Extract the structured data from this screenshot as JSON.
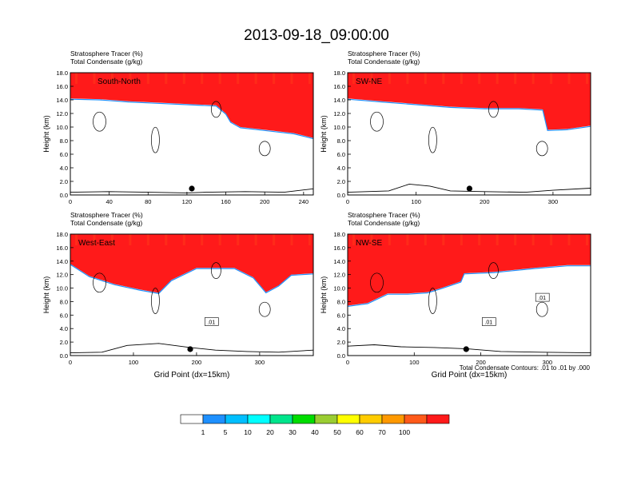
{
  "title": "2013-09-18_09:00:00",
  "footnote": "Total Condensate Contours: .01 to .01 by .000",
  "colorbar": {
    "levels": [
      "1",
      "5",
      "10",
      "20",
      "30",
      "40",
      "50",
      "60",
      "70",
      "100"
    ],
    "colors": [
      "#ffffff",
      "#1e90ff",
      "#00bfff",
      "#00ffff",
      "#00e58c",
      "#00dd00",
      "#9acd32",
      "#ffff00",
      "#ffcc00",
      "#ff9900",
      "#ff5a1a",
      "#ff1a1a"
    ]
  },
  "chart_data": [
    {
      "type": "cross-section",
      "label": "South-North",
      "heading1": "Stratosphere Tracer   (%)",
      "heading2": "Total Condensate   (g/kg)",
      "ylabel": "Height (km)",
      "xlabel": "",
      "xlim": [
        0,
        250
      ],
      "ylim": [
        0,
        18
      ],
      "xticks": [
        "0",
        "40",
        "80",
        "120",
        "160",
        "200",
        "240"
      ],
      "yticks": [
        "0.0",
        "2.0",
        "4.0",
        "6.0",
        "8.0",
        "10.0",
        "12.0",
        "14.0",
        "16.0",
        "18.0"
      ],
      "tropopause_km": [
        [
          0,
          15.4
        ],
        [
          30,
          15.3
        ],
        [
          60,
          15.0
        ],
        [
          90,
          14.8
        ],
        [
          120,
          14.6
        ],
        [
          150,
          14.4
        ],
        [
          160,
          13.2
        ],
        [
          165,
          12.0
        ],
        [
          175,
          11.2
        ],
        [
          200,
          10.8
        ],
        [
          230,
          10.3
        ],
        [
          250,
          9.6
        ]
      ],
      "marker_x": 125,
      "terrain_km": [
        [
          0,
          0.4
        ],
        [
          40,
          0.5
        ],
        [
          80,
          0.4
        ],
        [
          120,
          0.3
        ],
        [
          140,
          0.4
        ],
        [
          180,
          0.5
        ],
        [
          220,
          0.4
        ],
        [
          250,
          0.9
        ]
      ],
      "contour_labels": []
    },
    {
      "type": "cross-section",
      "label": "SW-NE",
      "heading1": "Stratosphere Tracer   (%)",
      "heading2": "Total Condensate   (g/kg)",
      "ylabel": "Height (km)",
      "xlabel": "",
      "xlim": [
        0,
        355
      ],
      "ylim": [
        0,
        18
      ],
      "xticks": [
        "0",
        "100",
        "200",
        "300"
      ],
      "yticks": [
        "0.0",
        "2.0",
        "4.0",
        "6.0",
        "8.0",
        "10.0",
        "12.0",
        "14.0",
        "16.0",
        "18.0"
      ],
      "tropopause_km": [
        [
          0,
          15.4
        ],
        [
          50,
          15.0
        ],
        [
          100,
          14.6
        ],
        [
          150,
          14.2
        ],
        [
          200,
          14.0
        ],
        [
          250,
          14.0
        ],
        [
          285,
          13.8
        ],
        [
          292,
          10.8
        ],
        [
          320,
          10.9
        ],
        [
          355,
          11.4
        ]
      ],
      "marker_x": 178,
      "terrain_km": [
        [
          0,
          0.4
        ],
        [
          60,
          0.6
        ],
        [
          90,
          1.6
        ],
        [
          120,
          1.3
        ],
        [
          150,
          0.6
        ],
        [
          200,
          0.5
        ],
        [
          260,
          0.4
        ],
        [
          300,
          0.7
        ],
        [
          355,
          1.0
        ]
      ],
      "contour_labels": []
    },
    {
      "type": "cross-section",
      "label": "West-East",
      "heading1": "Stratosphere Tracer   (%)",
      "heading2": "Total Condensate   (g/kg)",
      "ylabel": "Height (km)",
      "xlabel": "Grid Point (dx=15km)",
      "xlim": [
        0,
        385
      ],
      "ylim": [
        0,
        18
      ],
      "xticks": [
        "0",
        "100",
        "200",
        "300"
      ],
      "yticks": [
        "0.0",
        "2.0",
        "4.0",
        "6.0",
        "8.0",
        "10.0",
        "12.0",
        "14.0",
        "16.0",
        "18.0"
      ],
      "tropopause_km": [
        [
          0,
          14.8
        ],
        [
          30,
          13.0
        ],
        [
          70,
          11.8
        ],
        [
          110,
          11.0
        ],
        [
          140,
          10.5
        ],
        [
          160,
          12.4
        ],
        [
          200,
          14.2
        ],
        [
          260,
          14.2
        ],
        [
          290,
          12.8
        ],
        [
          310,
          10.6
        ],
        [
          330,
          11.6
        ],
        [
          350,
          13.2
        ],
        [
          385,
          13.4
        ]
      ],
      "marker_x": 190,
      "terrain_km": [
        [
          0,
          0.4
        ],
        [
          50,
          0.5
        ],
        [
          90,
          1.5
        ],
        [
          140,
          1.8
        ],
        [
          190,
          1.2
        ],
        [
          230,
          0.8
        ],
        [
          280,
          0.6
        ],
        [
          330,
          0.5
        ],
        [
          385,
          0.8
        ]
      ],
      "contour_labels": [
        ".01"
      ]
    },
    {
      "type": "cross-section",
      "label": "NW-SE",
      "heading1": "Stratosphere Tracer   (%)",
      "heading2": "Total Condensate   (g/kg)",
      "ylabel": "Height (km)",
      "xlabel": "Grid Point (dx=15km)",
      "xlim": [
        0,
        365
      ],
      "ylim": [
        0,
        18
      ],
      "xticks": [
        "0",
        "100",
        "200",
        "300"
      ],
      "yticks": [
        "0.0",
        "2.0",
        "4.0",
        "6.0",
        "8.0",
        "10.0",
        "12.0",
        "14.0",
        "16.0",
        "18.0"
      ],
      "tropopause_km": [
        [
          0,
          8.6
        ],
        [
          30,
          9.0
        ],
        [
          60,
          10.4
        ],
        [
          90,
          10.4
        ],
        [
          120,
          10.6
        ],
        [
          140,
          11.2
        ],
        [
          170,
          12.2
        ],
        [
          175,
          13.4
        ],
        [
          220,
          13.6
        ],
        [
          280,
          14.2
        ],
        [
          330,
          14.6
        ],
        [
          365,
          14.6
        ]
      ],
      "marker_x": 178,
      "terrain_km": [
        [
          0,
          1.4
        ],
        [
          40,
          1.6
        ],
        [
          80,
          1.3
        ],
        [
          130,
          1.2
        ],
        [
          180,
          1.0
        ],
        [
          230,
          0.6
        ],
        [
          290,
          0.5
        ],
        [
          365,
          0.4
        ]
      ],
      "contour_labels": [
        ".01",
        ".01"
      ]
    }
  ]
}
